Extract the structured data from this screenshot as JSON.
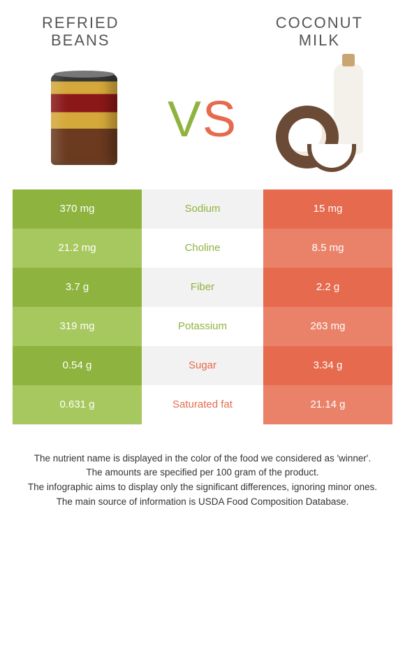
{
  "left_food": {
    "title": "REFRIED\nBEANS"
  },
  "right_food": {
    "title": "COCONUT\nMILK"
  },
  "vs": {
    "v": "V",
    "s": "S"
  },
  "colors": {
    "left_primary": "#8fb33f",
    "left_alt": "#a7c85e",
    "right_primary": "#e66a4e",
    "right_alt": "#ea8269"
  },
  "rows": [
    {
      "label": "Sodium",
      "left": "370 mg",
      "right": "15 mg",
      "winner": "left"
    },
    {
      "label": "Choline",
      "left": "21.2 mg",
      "right": "8.5 mg",
      "winner": "left"
    },
    {
      "label": "Fiber",
      "left": "3.7 g",
      "right": "2.2 g",
      "winner": "left"
    },
    {
      "label": "Potassium",
      "left": "319 mg",
      "right": "263 mg",
      "winner": "left"
    },
    {
      "label": "Sugar",
      "left": "0.54 g",
      "right": "3.34 g",
      "winner": "right"
    },
    {
      "label": "Saturated fat",
      "left": "0.631 g",
      "right": "21.14 g",
      "winner": "right"
    }
  ],
  "footer": [
    "The nutrient name is displayed in the color of the food we considered as 'winner'.",
    "The amounts are specified per 100 gram of the product.",
    "The infographic aims to display only the significant differences, ignoring minor ones.",
    "The main source of information is USDA Food Composition Database."
  ]
}
